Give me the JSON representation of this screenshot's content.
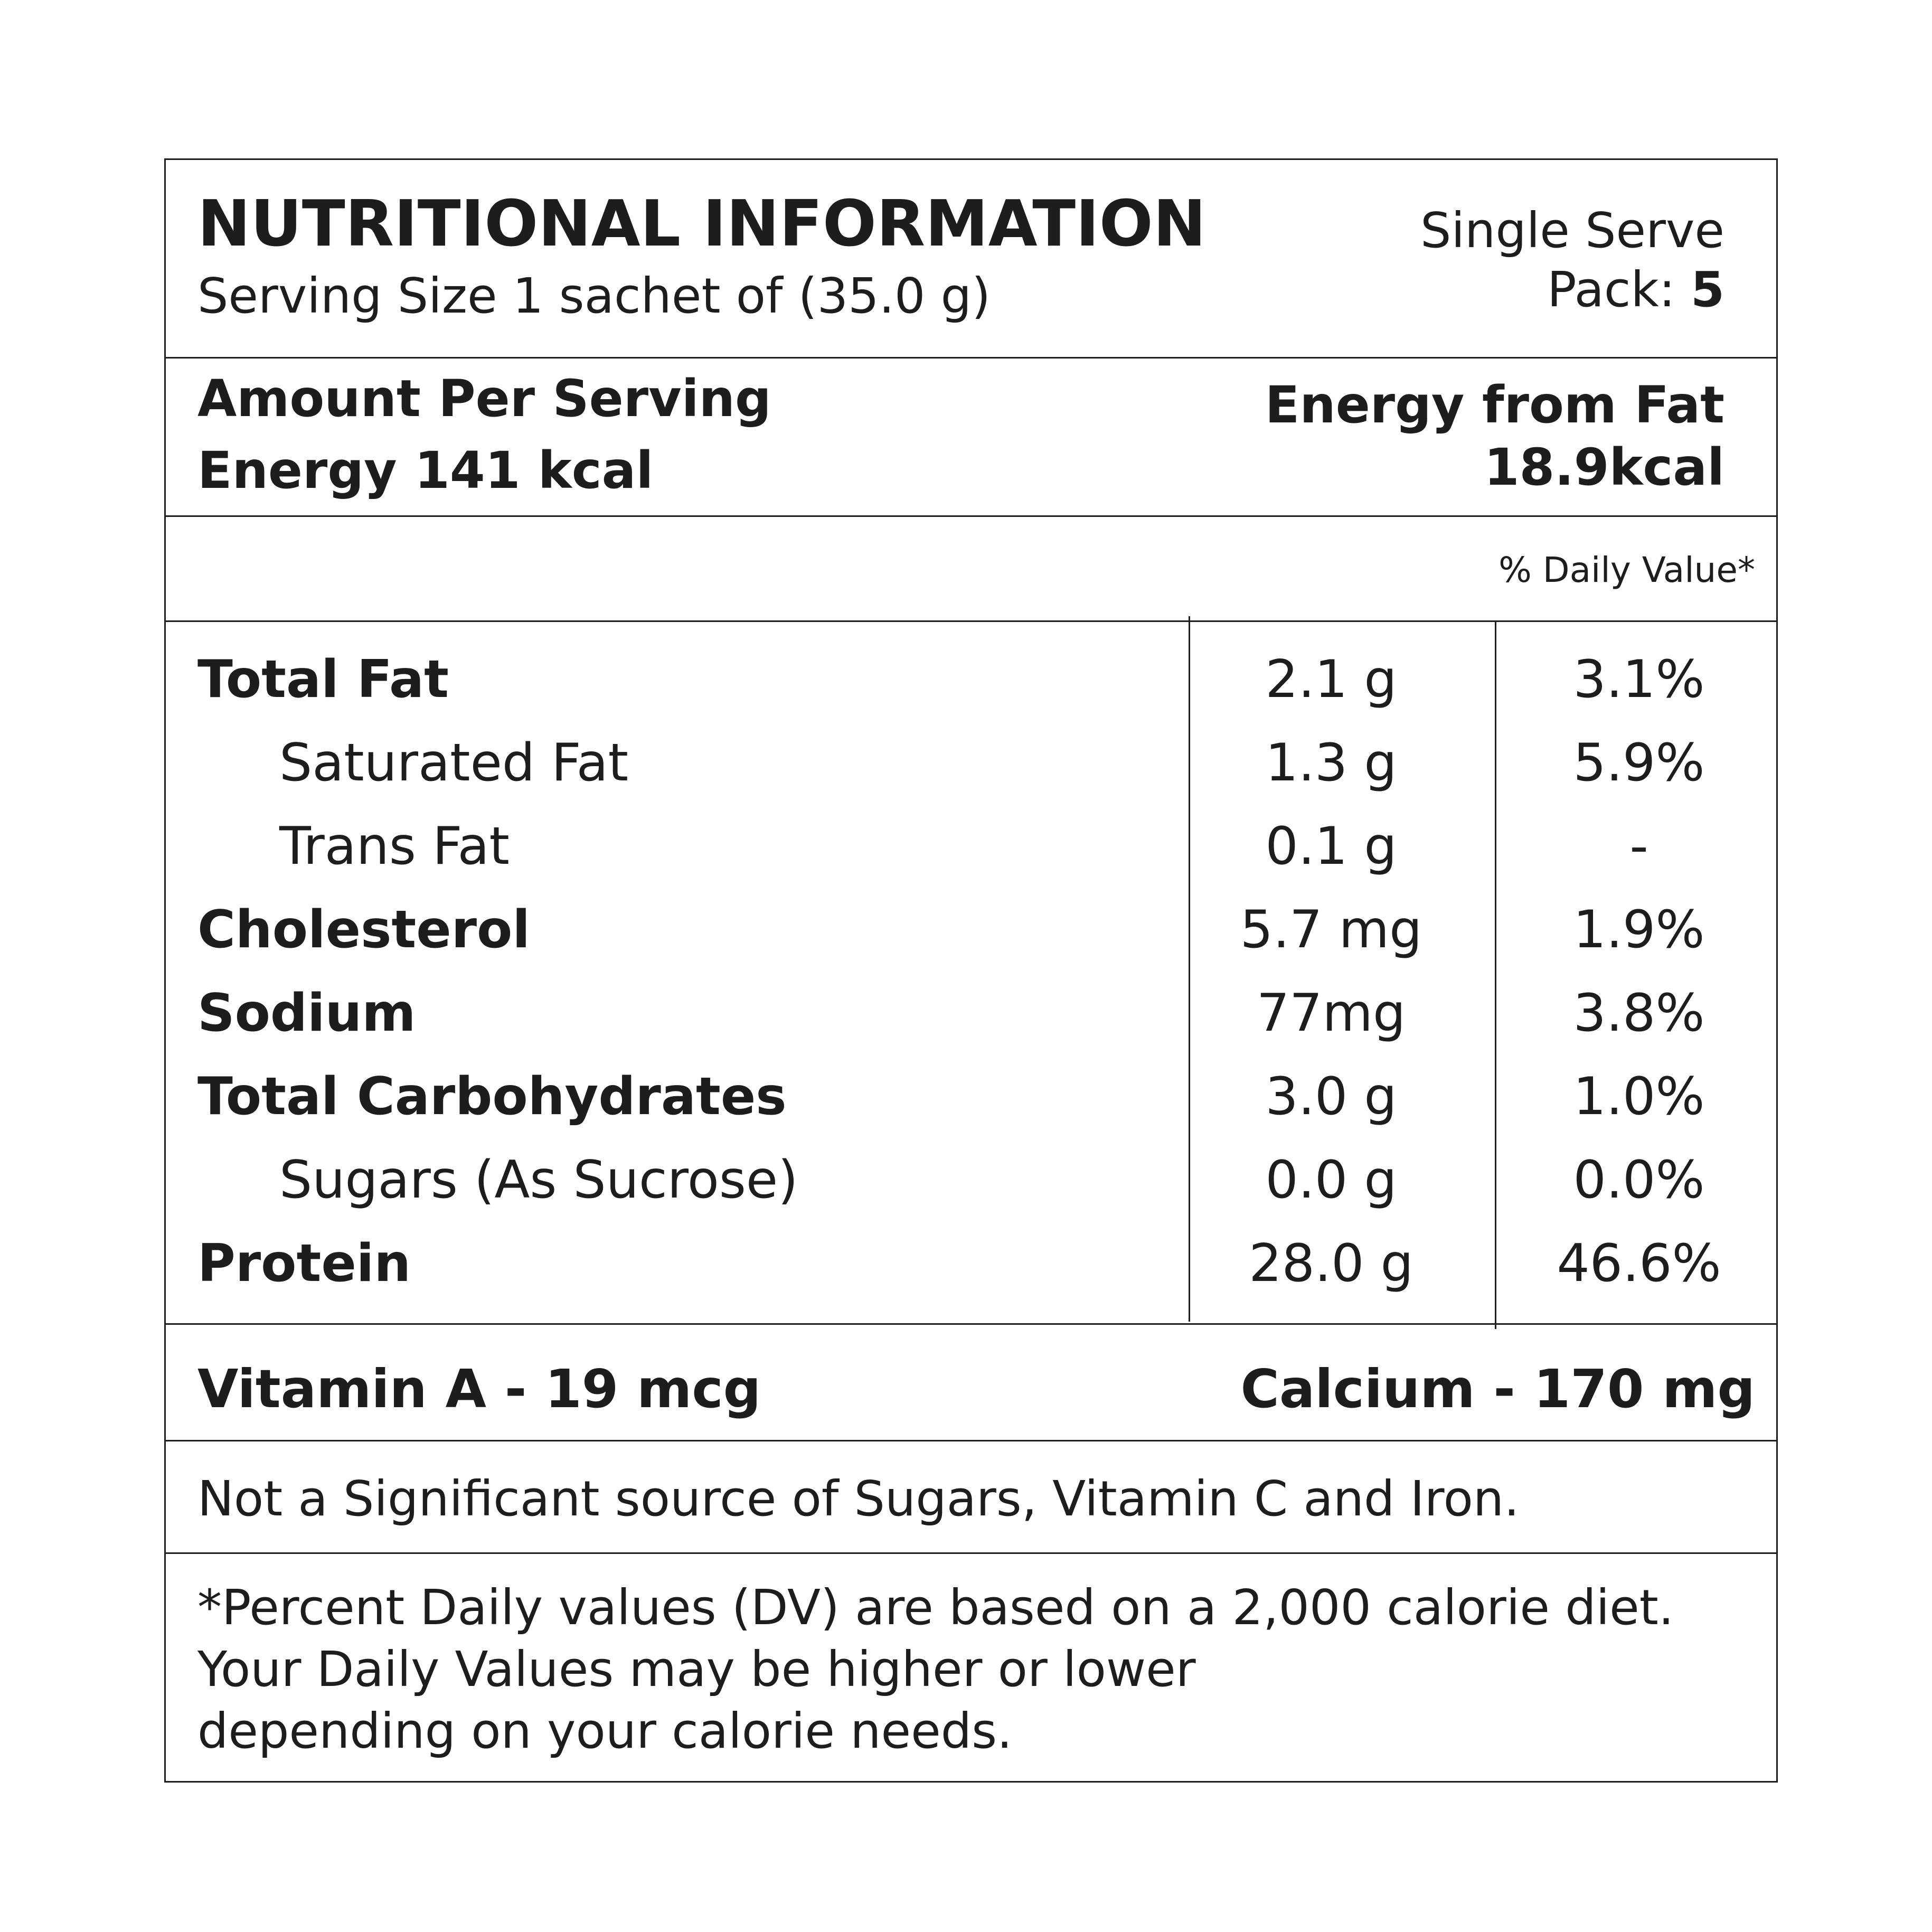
{
  "header": {
    "title": "NUTRITIONAL INFORMATION",
    "serving_size": "Serving Size 1 sachet of (35.0 g)",
    "single_serve": "Single Serve",
    "pack_label": "Pack: ",
    "pack_value": "5"
  },
  "amount": {
    "per_serving": "Amount Per Serving",
    "energy": "Energy 141 kcal",
    "energy_from_fat_label": "Energy from Fat",
    "energy_from_fat_value": "18.9kcal"
  },
  "daily_value_header": "% Daily Value*",
  "nutrients": [
    {
      "name": "Total Fat",
      "amount": "2.1 g",
      "dv": "3.1%",
      "bold": true
    },
    {
      "name": "Saturated Fat",
      "amount": "1.3 g",
      "dv": "5.9%",
      "bold": false
    },
    {
      "name": "Trans Fat",
      "amount": "0.1 g",
      "dv": "-",
      "bold": false
    },
    {
      "name": "Cholesterol",
      "amount": "5.7 mg",
      "dv": "1.9%",
      "bold": true
    },
    {
      "name": "Sodium",
      "amount": "77mg",
      "dv": "3.8%",
      "bold": true
    },
    {
      "name": "Total Carbohydrates",
      "amount": "3.0 g",
      "dv": "1.0%",
      "bold": true
    },
    {
      "name": "Sugars (As Sucrose)",
      "amount": "0.0 g",
      "dv": "0.0%",
      "bold": false
    },
    {
      "name": "Protein",
      "amount": "28.0 g",
      "dv": "46.6%",
      "bold": true
    }
  ],
  "vitamins": {
    "vitamin_a": "Vitamin A - 19 mcg",
    "calcium": "Calcium - 170 mg"
  },
  "not_significant": "Not a Significant source of Sugars, Vitamin C and Iron.",
  "footnote": {
    "line1": "*Percent Daily values (DV) are based on a 2,000 calorie diet.",
    "line2": "Your Daily Values may be higher or lower",
    "line3": "depending on your calorie needs."
  }
}
